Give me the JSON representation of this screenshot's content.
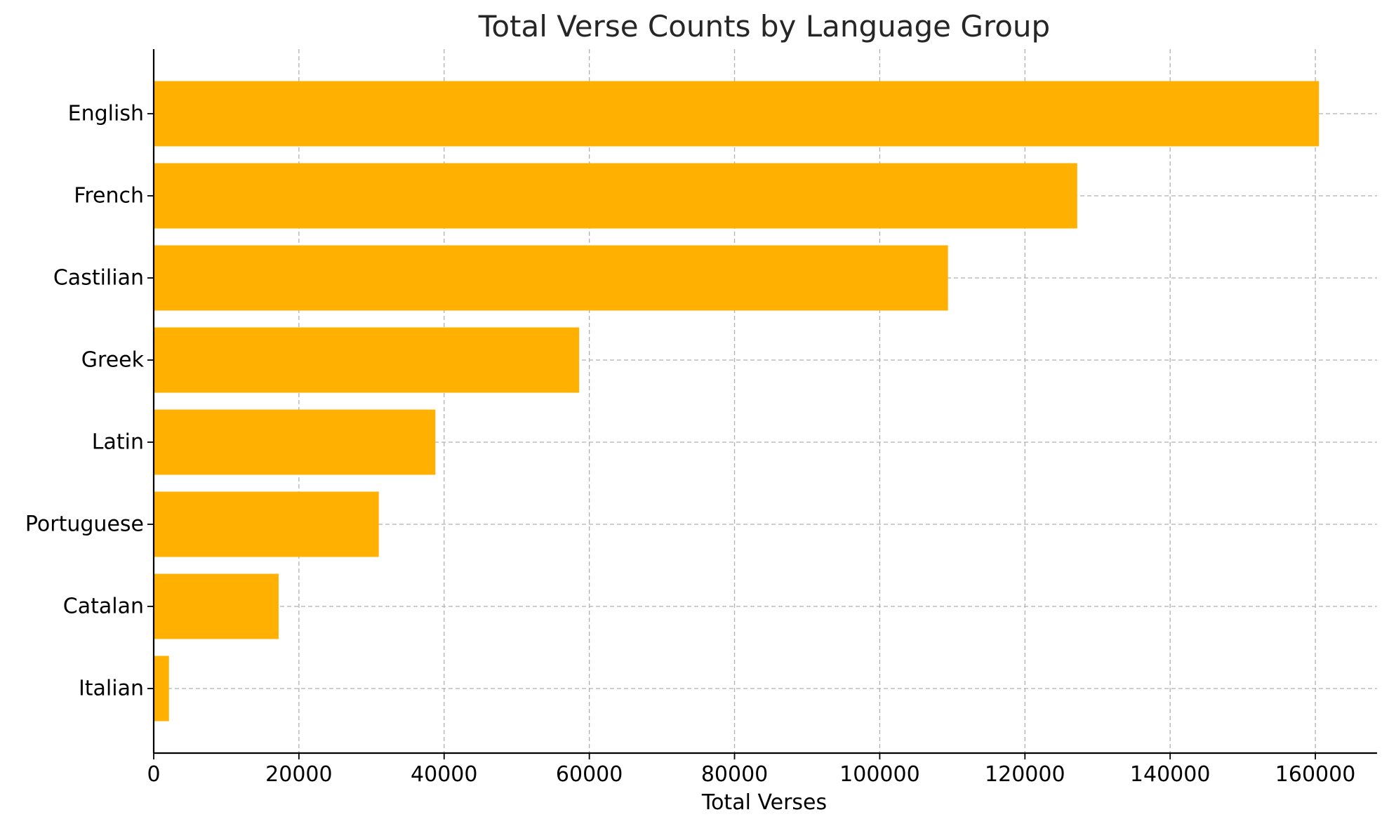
{
  "chart_data": {
    "type": "bar",
    "orientation": "horizontal",
    "title": "Total Verse Counts by Language Group",
    "xlabel": "Total Verses",
    "ylabel": "",
    "categories": [
      "English",
      "French",
      "Castilian",
      "Greek",
      "Latin",
      "Portuguese",
      "Catalan",
      "Italian"
    ],
    "values": [
      160500,
      127200,
      109400,
      58600,
      38800,
      31000,
      17200,
      2100
    ],
    "xlim": [
      0,
      168500
    ],
    "xticks": [
      0,
      20000,
      40000,
      60000,
      80000,
      100000,
      120000,
      140000,
      160000
    ],
    "xtick_labels": [
      "0",
      "20000",
      "40000",
      "60000",
      "80000",
      "100000",
      "120000",
      "140000",
      "160000"
    ],
    "grid": true,
    "legend": "none",
    "colors": {
      "bar": "#ffb000",
      "grid": "#b0b0b0",
      "axis": "#000000",
      "text": "#262626"
    }
  }
}
